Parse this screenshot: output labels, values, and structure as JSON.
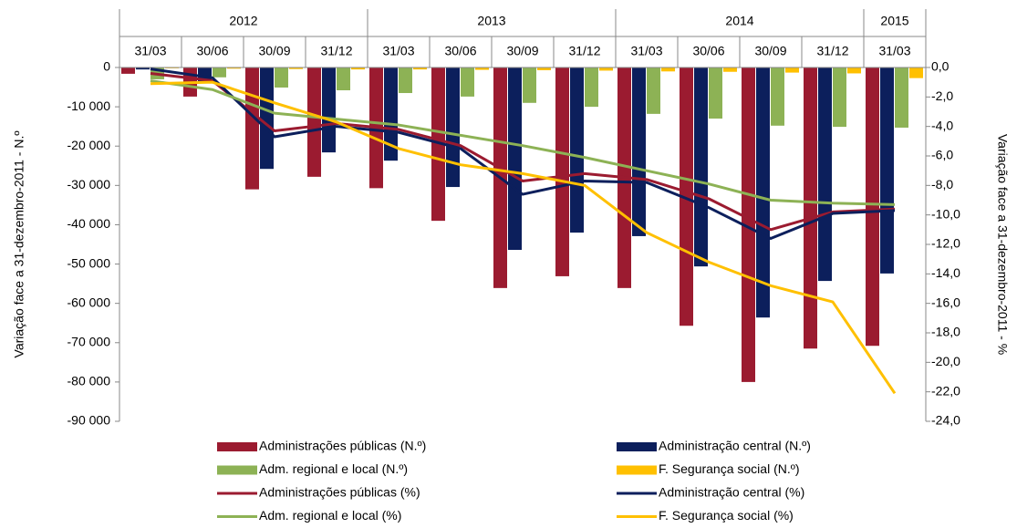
{
  "chart_data": {
    "type": "combo",
    "category_groups": [
      {
        "name": "2012",
        "categories": [
          "31/03",
          "30/06",
          "30/09",
          "31/12"
        ]
      },
      {
        "name": "2013",
        "categories": [
          "31/03",
          "30/06",
          "30/09",
          "31/12"
        ]
      },
      {
        "name": "2014",
        "categories": [
          "31/03",
          "30/06",
          "30/09",
          "31/12"
        ]
      },
      {
        "name": "2015",
        "categories": [
          "31/03"
        ]
      }
    ],
    "ylabel": "Variação  face a 31-dezembro-2011 - N.º",
    "y2label": "Variação face a 31-dezembro-2011 - %",
    "ylim": [
      -90000,
      0
    ],
    "yticks": [
      {
        "value": 0,
        "label": "0"
      },
      {
        "value": -10000,
        "label": "-10 000"
      },
      {
        "value": -20000,
        "label": "-20 000"
      },
      {
        "value": -30000,
        "label": "-30 000"
      },
      {
        "value": -40000,
        "label": "-40 000"
      },
      {
        "value": -50000,
        "label": "-50 000"
      },
      {
        "value": -60000,
        "label": "-60 000"
      },
      {
        "value": -70000,
        "label": "-70 000"
      },
      {
        "value": -80000,
        "label": "-80 000"
      },
      {
        "value": -90000,
        "label": "-90 000"
      }
    ],
    "y2lim": [
      -24,
      0
    ],
    "y2ticks": [
      {
        "value": 0,
        "label": "0,0"
      },
      {
        "value": -2,
        "label": "-2,0"
      },
      {
        "value": -4,
        "label": "-4,0"
      },
      {
        "value": -6,
        "label": "-6,0"
      },
      {
        "value": -8,
        "label": "-8,0"
      },
      {
        "value": -10,
        "label": "-10,0"
      },
      {
        "value": -12,
        "label": "-12,0"
      },
      {
        "value": -14,
        "label": "-14,0"
      },
      {
        "value": -16,
        "label": "-16,0"
      },
      {
        "value": -18,
        "label": "-18,0"
      },
      {
        "value": -20,
        "label": "-20,0"
      },
      {
        "value": -22,
        "label": "-22,0"
      },
      {
        "value": -24,
        "label": "-24,0"
      }
    ],
    "series": [
      {
        "name": "Administrações públicas (N.º)",
        "kind": "bar",
        "color": "#9b1b30",
        "values": [
          -1600,
          -7400,
          -31000,
          -27800,
          -30700,
          -39000,
          -56100,
          -53100,
          -56100,
          -65700,
          -80000,
          -71500,
          -70800
        ]
      },
      {
        "name": "Administração central (N.º)",
        "kind": "bar",
        "color": "#0c1f5c",
        "values": [
          -500,
          -3500,
          -25800,
          -21600,
          -23700,
          -30400,
          -46400,
          -42000,
          -42900,
          -50600,
          -63600,
          -54300,
          -52400
        ]
      },
      {
        "name": "Adm. regional e local (N.º)",
        "kind": "bar",
        "color": "#8db255",
        "values": [
          -3000,
          -2500,
          -5100,
          -5800,
          -6500,
          -7400,
          -9000,
          -10000,
          -11800,
          -13000,
          -14800,
          -15100,
          -15300
        ]
      },
      {
        "name": "F. Segurança social  (N.º)",
        "kind": "bar",
        "color": "#ffc000",
        "values": [
          -200,
          -300,
          -400,
          -500,
          -500,
          -600,
          -700,
          -800,
          -1000,
          -1100,
          -1300,
          -1500,
          -2700
        ]
      },
      {
        "name": "Administrações públicas (%)",
        "kind": "line",
        "axis": "y2",
        "color": "#9b1b30",
        "values": [
          -0.4,
          -0.9,
          -4.3,
          -3.8,
          -4.2,
          -5.3,
          -7.7,
          -7.2,
          -7.6,
          -8.9,
          -11.0,
          -9.8,
          -9.6
        ]
      },
      {
        "name": "Administração central  (%)",
        "kind": "line",
        "axis": "y2",
        "color": "#0c1f5c",
        "values": [
          -0.1,
          -0.7,
          -4.7,
          -4.0,
          -4.4,
          -5.5,
          -8.6,
          -7.7,
          -7.8,
          -9.5,
          -11.6,
          -9.9,
          -9.7
        ]
      },
      {
        "name": "Adm. regional e local (%)",
        "kind": "line",
        "axis": "y2",
        "color": "#8db255",
        "values": [
          -0.9,
          -1.5,
          -3.1,
          -3.5,
          -3.9,
          -4.6,
          -5.3,
          -6.1,
          -7.0,
          -7.9,
          -9.0,
          -9.2,
          -9.3
        ]
      },
      {
        "name": "F. Segurança social  (%)",
        "kind": "line",
        "axis": "y2",
        "color": "#ffc000",
        "values": [
          -1.1,
          -1.0,
          -2.4,
          -3.7,
          -5.5,
          -6.6,
          -7.2,
          -8.0,
          -11.2,
          -13.2,
          -14.8,
          -15.9,
          -22.1
        ]
      }
    ]
  }
}
